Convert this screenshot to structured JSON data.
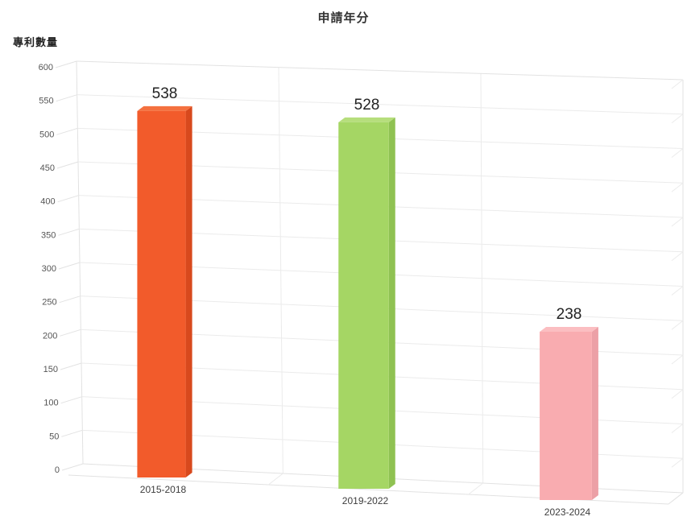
{
  "chart_data": {
    "type": "bar",
    "projection": "3d-perspective",
    "title": "申請年分",
    "ylabel": "專利數量",
    "xlabel": "",
    "categories": [
      "2015-2018",
      "2019-2022",
      "2023-2024"
    ],
    "values": [
      538,
      528,
      238
    ],
    "ylim": [
      0,
      600
    ],
    "ytick_step": 50,
    "grid": true,
    "legend": false,
    "value_labels_shown": true,
    "bar_colors": [
      {
        "front": "#F25B2B",
        "top": "#F4713F",
        "side": "#D8491D"
      },
      {
        "front": "#A5D664",
        "top": "#B6DE7C",
        "side": "#8FC252"
      },
      {
        "front": "#F9ACB0",
        "top": "#FBBEC1",
        "side": "#ECA0A6"
      }
    ]
  },
  "colors": {
    "background": "#FFFFFF",
    "grid": "#EBEBEB",
    "edge": "#E2E2E2",
    "axis_text": "#555555",
    "value_text": "#222222",
    "category_text": "#3D3D3D",
    "title_text": "#333333"
  }
}
